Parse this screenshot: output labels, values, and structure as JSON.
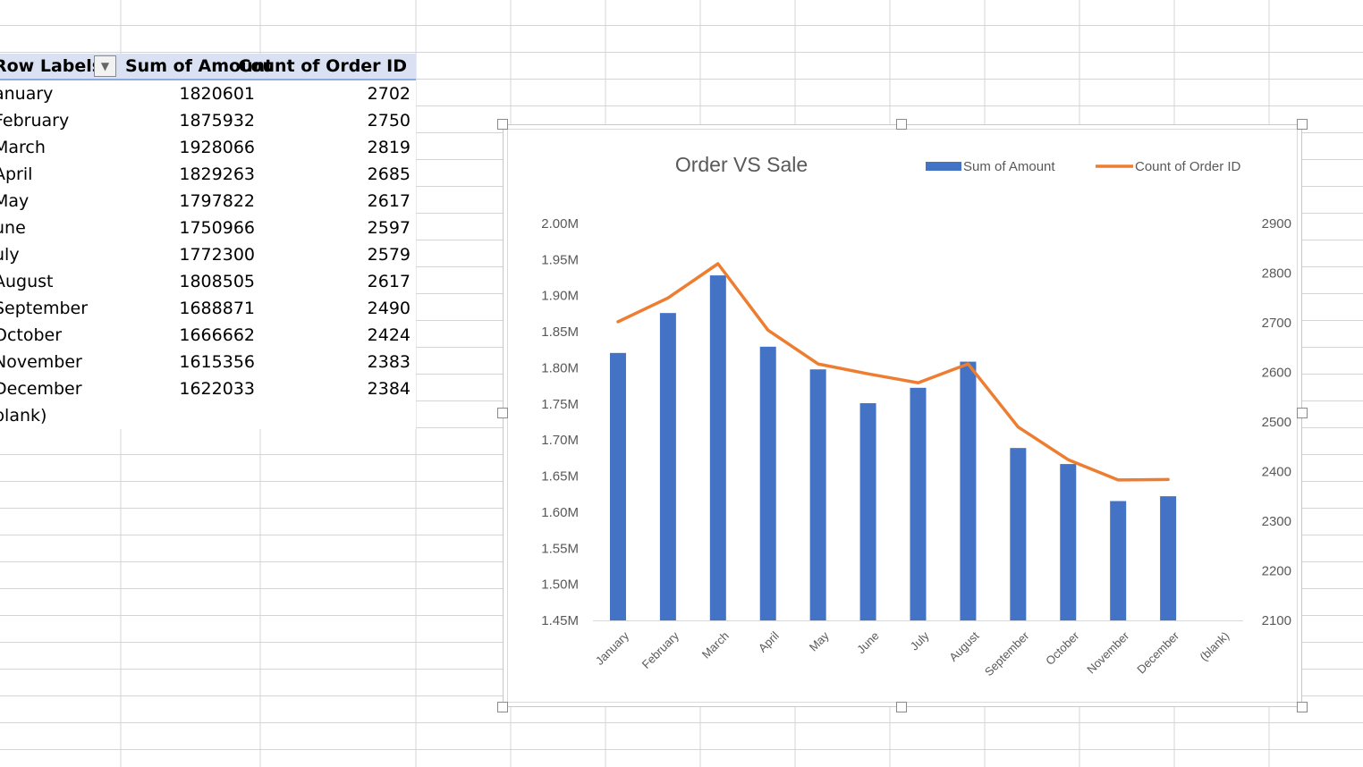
{
  "pivot": {
    "headers": {
      "row_labels": "Row Labels",
      "sum_of_amount": "Sum of Amount",
      "count_of_order_id": "Count of Order ID"
    },
    "rows": [
      {
        "label": "anuary",
        "amount": "1820601",
        "count": "2702"
      },
      {
        "label": "February",
        "amount": "1875932",
        "count": "2750"
      },
      {
        "label": "March",
        "amount": "1928066",
        "count": "2819"
      },
      {
        "label": "April",
        "amount": "1829263",
        "count": "2685"
      },
      {
        "label": "May",
        "amount": "1797822",
        "count": "2617"
      },
      {
        "label": "une",
        "amount": "1750966",
        "count": "2597"
      },
      {
        "label": "uly",
        "amount": "1772300",
        "count": "2579"
      },
      {
        "label": "August",
        "amount": "1808505",
        "count": "2617"
      },
      {
        "label": "September",
        "amount": "1688871",
        "count": "2490"
      },
      {
        "label": "October",
        "amount": "1666662",
        "count": "2424"
      },
      {
        "label": "November",
        "amount": "1615356",
        "count": "2383"
      },
      {
        "label": "December",
        "amount": "1622033",
        "count": "2384"
      },
      {
        "label": "blank)",
        "amount": "",
        "count": ""
      }
    ]
  },
  "chart_data": {
    "type": "bar",
    "title": "Order VS Sale",
    "categories": [
      "January",
      "February",
      "March",
      "April",
      "May",
      "June",
      "July",
      "August",
      "September",
      "October",
      "November",
      "December",
      "(blank)"
    ],
    "series": [
      {
        "name": "Sum of Amount",
        "type": "bar",
        "axis": "left",
        "color": "#4472c4",
        "values": [
          1820601,
          1875932,
          1928066,
          1829263,
          1797822,
          1750966,
          1772300,
          1808505,
          1688871,
          1666662,
          1615356,
          1622033,
          null
        ]
      },
      {
        "name": "Count of Order ID",
        "type": "line",
        "axis": "right",
        "color": "#ed7d31",
        "values": [
          2702,
          2750,
          2819,
          2685,
          2617,
          2597,
          2579,
          2617,
          2490,
          2424,
          2383,
          2384,
          null
        ]
      }
    ],
    "y_left": {
      "min": 1450000,
      "max": 2000000,
      "ticks": [
        "2.00M",
        "1.95M",
        "1.90M",
        "1.85M",
        "1.80M",
        "1.75M",
        "1.70M",
        "1.65M",
        "1.60M",
        "1.55M",
        "1.50M",
        "1.45M"
      ]
    },
    "y_right": {
      "min": 2100,
      "max": 2900,
      "ticks": [
        "2900",
        "2800",
        "2700",
        "2600",
        "2500",
        "2400",
        "2300",
        "2200",
        "2100"
      ]
    },
    "legend": "top-right",
    "grid": false
  }
}
